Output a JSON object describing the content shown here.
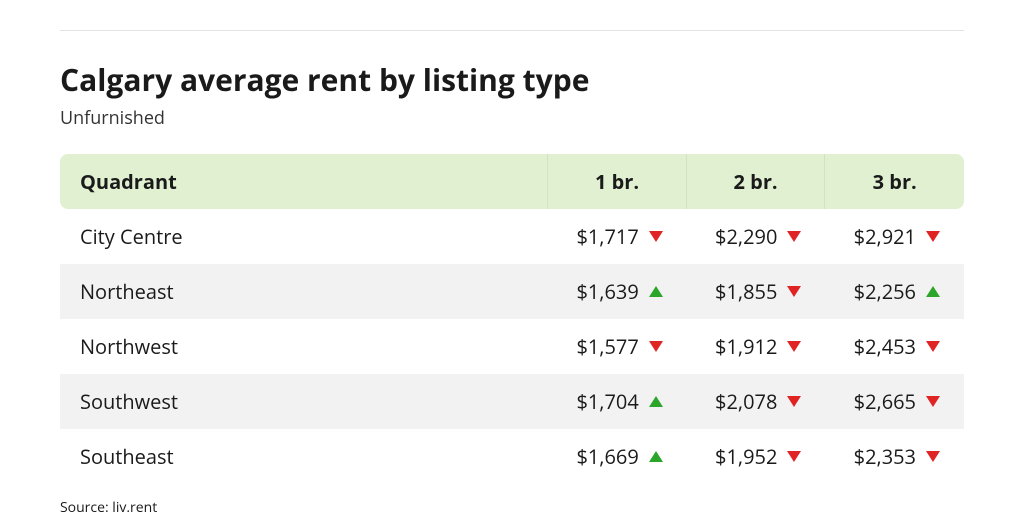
{
  "title": "Calgary average rent by listing type",
  "subtitle": "Unfurnished",
  "source": "Source: liv.rent",
  "colors": {
    "header_bg": "#e1f0d1",
    "zebra_bg": "#f2f2f2",
    "text": "#1a1a1a",
    "up_arrow": "#2ba62b",
    "down_arrow": "#e02424",
    "rule": "#e3e3e3",
    "background": "#ffffff"
  },
  "font": {
    "title_size_pt": 22,
    "title_weight": 700,
    "subtitle_size_pt": 14,
    "body_size_pt": 15,
    "source_size_pt": 10
  },
  "table": {
    "type": "table",
    "columns": [
      "Quadrant",
      "1 br.",
      "2 br.",
      "3 br."
    ],
    "rows": [
      {
        "quadrant": "City Centre",
        "cells": [
          {
            "value": "$1,717",
            "trend": "down"
          },
          {
            "value": "$2,290",
            "trend": "down"
          },
          {
            "value": "$2,921",
            "trend": "down"
          }
        ]
      },
      {
        "quadrant": "Northeast",
        "cells": [
          {
            "value": "$1,639",
            "trend": "up"
          },
          {
            "value": "$1,855",
            "trend": "down"
          },
          {
            "value": "$2,256",
            "trend": "up"
          }
        ]
      },
      {
        "quadrant": "Northwest",
        "cells": [
          {
            "value": "$1,577",
            "trend": "down"
          },
          {
            "value": "$1,912",
            "trend": "down"
          },
          {
            "value": "$2,453",
            "trend": "down"
          }
        ]
      },
      {
        "quadrant": "Southwest",
        "cells": [
          {
            "value": "$1,704",
            "trend": "up"
          },
          {
            "value": "$2,078",
            "trend": "down"
          },
          {
            "value": "$2,665",
            "trend": "down"
          }
        ]
      },
      {
        "quadrant": "Southeast",
        "cells": [
          {
            "value": "$1,669",
            "trend": "up"
          },
          {
            "value": "$1,952",
            "trend": "down"
          },
          {
            "value": "$2,353",
            "trend": "down"
          }
        ]
      }
    ]
  }
}
